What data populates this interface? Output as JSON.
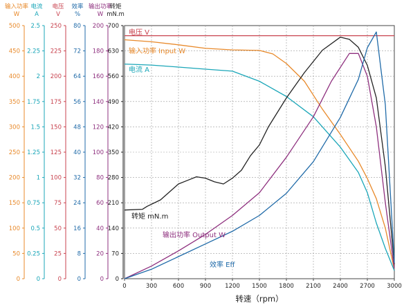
{
  "chart_data": {
    "type": "line",
    "xlabel": "转速（rpm）",
    "x_ticks": [
      0,
      300,
      600,
      900,
      1200,
      1500,
      1800,
      2100,
      2400,
      2700,
      3000
    ],
    "xlim": [
      0,
      3000
    ],
    "grid": true,
    "axes": [
      {
        "key": "input_power",
        "title_line1": "输入功率",
        "title_line2": "W",
        "color": "#e8892a",
        "max": 500,
        "ticks": [
          "500",
          "450",
          "400",
          "350",
          "300",
          "250",
          "200",
          "150",
          "100",
          "50",
          "0"
        ]
      },
      {
        "key": "current",
        "title_line1": "电流",
        "title_line2": "A",
        "color": "#1aa6b8",
        "max": 2.5,
        "ticks": [
          "2.5",
          "2.25",
          "2",
          "1.75",
          "1.5",
          "1.25",
          "1",
          "0.75",
          "0.5",
          "0.25",
          "0"
        ]
      },
      {
        "key": "voltage",
        "title_line1": "电压",
        "title_line2": "V",
        "color": "#c8424e",
        "max": 250,
        "ticks": [
          "250",
          "225",
          "200",
          "175",
          "150",
          "125",
          "100",
          "75",
          "50",
          "25",
          "0"
        ]
      },
      {
        "key": "efficiency",
        "title_line1": "效率",
        "title_line2": "%",
        "color": "#1f6aa8",
        "max": 80,
        "ticks": [
          "80",
          "72",
          "64",
          "56",
          "48",
          "40",
          "32",
          "24",
          "16",
          "8",
          "0"
        ]
      },
      {
        "key": "output_power",
        "title_line1": "输出功率",
        "title_line2": "W",
        "color": "#8e2f7e",
        "max": 200,
        "ticks": [
          "200",
          "180",
          "160",
          "140",
          "120",
          "100",
          "80",
          "60",
          "40",
          "20",
          "0"
        ]
      },
      {
        "key": "torque",
        "title_line1": "转矩",
        "title_line2": "mN.m",
        "color": "#222222",
        "max": 700,
        "ticks": [
          "700",
          "630",
          "560",
          "490",
          "420",
          "350",
          "280",
          "210",
          "140",
          "70",
          "0"
        ]
      }
    ],
    "series": [
      {
        "name": "电压 V",
        "axis": "voltage",
        "color": "#c8424e",
        "x": [
          0,
          3000
        ],
        "y": [
          240,
          240
        ]
      },
      {
        "name": "输入功率 Input W",
        "axis": "input_power",
        "color": "#e8892a",
        "x": [
          0,
          300,
          600,
          900,
          1200,
          1500,
          1650,
          1800,
          2000,
          2200,
          2400,
          2600,
          2700,
          2800,
          2900,
          3000
        ],
        "y": [
          472,
          468,
          462,
          455,
          452,
          451,
          444,
          425,
          390,
          335,
          285,
          232,
          198,
          158,
          100,
          18
        ]
      },
      {
        "name": "电流 A",
        "axis": "current",
        "color": "#1aa6b8",
        "x": [
          0,
          300,
          600,
          900,
          1200,
          1500,
          1800,
          2100,
          2400,
          2600,
          2700,
          2800,
          2900,
          3000
        ],
        "y": [
          2.12,
          2.11,
          2.09,
          2.07,
          2.05,
          1.95,
          1.8,
          1.6,
          1.3,
          1.05,
          0.85,
          0.55,
          0.3,
          0.08
        ]
      },
      {
        "name": "转矩 mN.m",
        "axis": "torque",
        "color": "#222222",
        "x": [
          0,
          200,
          250,
          400,
          500,
          600,
          700,
          800,
          900,
          1000,
          1100,
          1200,
          1300,
          1400,
          1500,
          1600,
          1800,
          2000,
          2200,
          2400,
          2500,
          2600,
          2700,
          2800,
          2900,
          3000
        ],
        "y": [
          190,
          192,
          200,
          218,
          240,
          262,
          272,
          282,
          278,
          268,
          262,
          278,
          300,
          340,
          370,
          420,
          500,
          570,
          632,
          668,
          662,
          640,
          590,
          500,
          310,
          40
        ]
      },
      {
        "name": "输出功率 Output W",
        "axis": "output_power",
        "color": "#8e2f7e",
        "x": [
          0,
          300,
          600,
          900,
          1200,
          1500,
          1800,
          2100,
          2300,
          2500,
          2600,
          2700,
          2800,
          2900,
          3000
        ],
        "y": [
          0,
          10,
          22,
          35,
          50,
          68,
          96,
          128,
          156,
          178,
          178,
          160,
          120,
          60,
          8
        ]
      },
      {
        "name": "效率 Eff",
        "axis": "efficiency",
        "color": "#1f6aa8",
        "x": [
          0,
          300,
          600,
          900,
          1200,
          1500,
          1800,
          2100,
          2400,
          2600,
          2700,
          2800,
          2900,
          3000
        ],
        "y": [
          0,
          3,
          7,
          11,
          15,
          20,
          27,
          37,
          51,
          63,
          73,
          78,
          55,
          5
        ]
      }
    ]
  }
}
